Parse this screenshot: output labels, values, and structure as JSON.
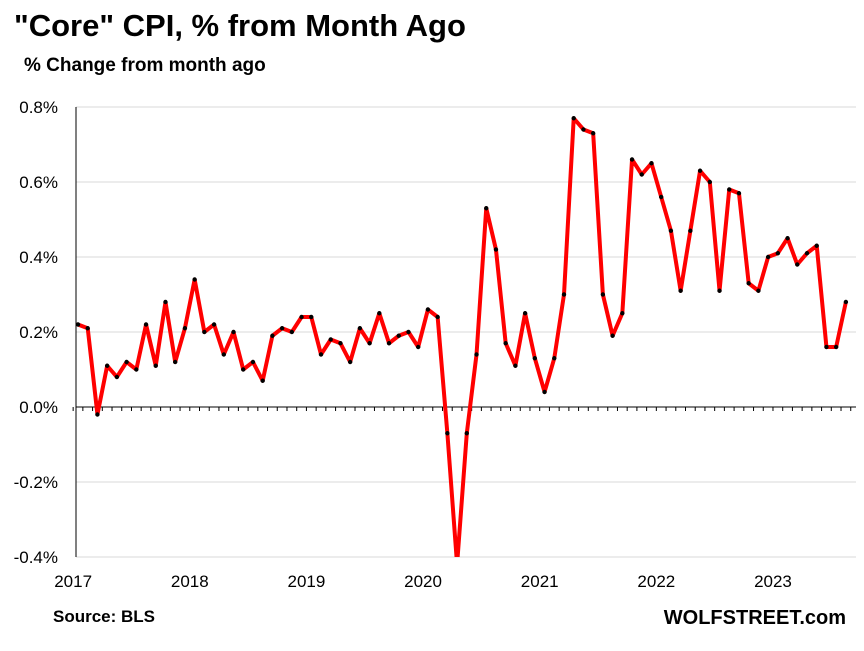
{
  "header": {
    "title": "\"Core\" CPI, % from Month Ago",
    "subtitle": "% Change from month ago"
  },
  "footer": {
    "source": "Source: BLS",
    "brand": "WOLFSTREET.com"
  },
  "colors": {
    "line": "#ff0000",
    "markers": "#000000",
    "grid": "#d9d9d9",
    "zero_axis": "#000000"
  },
  "chart_data": {
    "type": "line",
    "title": "\"Core\" CPI, % from Month Ago",
    "subtitle": "% Change from month ago",
    "xlabel": "",
    "ylabel": "",
    "ylim": [
      -0.4,
      0.8
    ],
    "y_ticks": [
      "-0.4%",
      "-0.2%",
      "0.0%",
      "0.2%",
      "0.4%",
      "0.6%",
      "0.8%"
    ],
    "y_tick_values": [
      -0.4,
      -0.2,
      0.0,
      0.2,
      0.4,
      0.6,
      0.8
    ],
    "x_ticks": [
      "2017",
      "2018",
      "2019",
      "2020",
      "2021",
      "2022",
      "2023"
    ],
    "x_start": "2017-01",
    "grid": true,
    "legend": "none",
    "series": [
      {
        "values": [
          0.22,
          0.21,
          -0.02,
          0.11,
          0.08,
          0.12,
          0.1,
          0.22,
          0.11,
          0.28,
          0.12,
          0.21,
          0.34,
          0.2,
          0.22,
          0.14,
          0.2,
          0.1,
          0.12,
          0.07,
          0.19,
          0.21,
          0.2,
          0.24,
          0.24,
          0.14,
          0.18,
          0.17,
          0.12,
          0.21,
          0.17,
          0.25,
          0.17,
          0.19,
          0.2,
          0.16,
          0.26,
          0.24,
          -0.07,
          -0.42,
          -0.07,
          0.14,
          0.53,
          0.42,
          0.17,
          0.11,
          0.25,
          0.13,
          0.04,
          0.13,
          0.3,
          0.77,
          0.74,
          0.73,
          0.3,
          0.19,
          0.25,
          0.66,
          0.62,
          0.65,
          0.56,
          0.47,
          0.31,
          0.47,
          0.63,
          0.6,
          0.31,
          0.58,
          0.57,
          0.33,
          0.31,
          0.4,
          0.41,
          0.45,
          0.38,
          0.41,
          0.43,
          0.16,
          0.16,
          0.28
        ]
      }
    ]
  }
}
